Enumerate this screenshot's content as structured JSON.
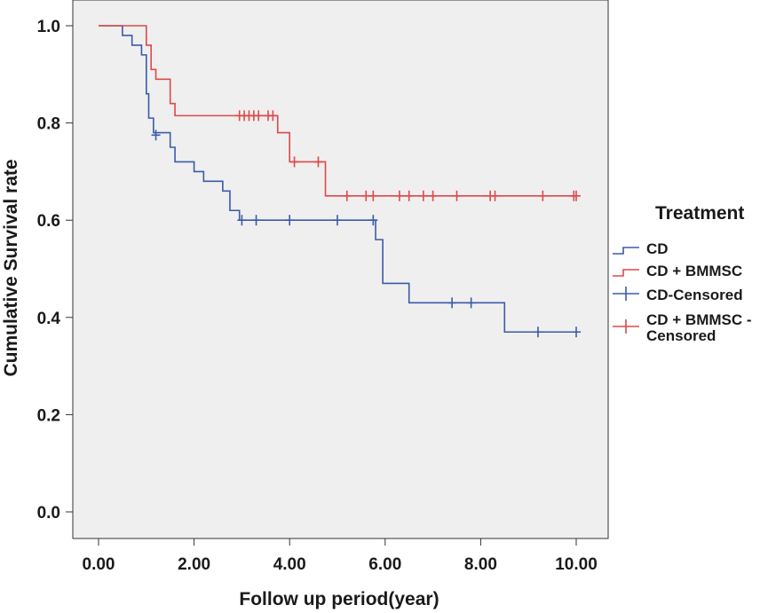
{
  "chart_data": {
    "type": "line",
    "subtype": "kaplan-meier-step",
    "title": "",
    "xlabel": "Follow up period(year)",
    "ylabel": "Cumulative Survival rate",
    "xlim": [
      0,
      10
    ],
    "ylim": [
      0,
      1
    ],
    "x_ticks": [
      0,
      2,
      4,
      6,
      8,
      10
    ],
    "x_tick_labels": [
      "0.00",
      "2.00",
      "4.00",
      "6.00",
      "8.00",
      "10.00"
    ],
    "y_ticks": [
      0,
      0.2,
      0.4,
      0.6,
      0.8,
      1.0
    ],
    "y_tick_labels": [
      "0.0",
      "0.2",
      "0.4",
      "0.6",
      "0.8",
      "1.0"
    ],
    "grid": false,
    "legend": {
      "title": "Treatment",
      "position": "right",
      "entries": [
        {
          "label": "CD",
          "marker": "step",
          "color": "#3a5ba8"
        },
        {
          "label": "CD + BMMSC",
          "marker": "step",
          "color": "#e04848"
        },
        {
          "label": "CD-Censored",
          "marker": "plus",
          "color": "#3a5ba8"
        },
        {
          "label": "CD + BMMSC - Censored",
          "marker": "plus",
          "color": "#e04848"
        }
      ]
    },
    "series": [
      {
        "name": "CD",
        "color": "#3a5ba8",
        "steps": [
          [
            0,
            1.0
          ],
          [
            0.5,
            0.98
          ],
          [
            0.7,
            0.96
          ],
          [
            0.9,
            0.94
          ],
          [
            1.0,
            0.86
          ],
          [
            1.05,
            0.81
          ],
          [
            1.15,
            0.78
          ],
          [
            1.5,
            0.75
          ],
          [
            1.6,
            0.72
          ],
          [
            2.0,
            0.7
          ],
          [
            2.2,
            0.68
          ],
          [
            2.6,
            0.66
          ],
          [
            2.75,
            0.62
          ],
          [
            2.95,
            0.6
          ],
          [
            5.8,
            0.56
          ],
          [
            5.95,
            0.47
          ],
          [
            6.5,
            0.43
          ],
          [
            8.5,
            0.37
          ],
          [
            10.0,
            0.37
          ]
        ],
        "censored": [
          [
            1.2,
            0.775
          ],
          [
            3.0,
            0.6
          ],
          [
            3.3,
            0.6
          ],
          [
            4.0,
            0.6
          ],
          [
            5.0,
            0.6
          ],
          [
            5.75,
            0.6
          ],
          [
            7.4,
            0.43
          ],
          [
            7.8,
            0.43
          ],
          [
            9.2,
            0.37
          ],
          [
            10.0,
            0.37
          ]
        ]
      },
      {
        "name": "CD + BMMSC",
        "color": "#e04848",
        "steps": [
          [
            0,
            1.0
          ],
          [
            1.0,
            0.96
          ],
          [
            1.1,
            0.91
          ],
          [
            1.2,
            0.89
          ],
          [
            1.5,
            0.84
          ],
          [
            1.6,
            0.815
          ],
          [
            3.75,
            0.78
          ],
          [
            4.0,
            0.72
          ],
          [
            4.75,
            0.65
          ],
          [
            10.0,
            0.65
          ]
        ],
        "censored": [
          [
            2.95,
            0.815
          ],
          [
            3.05,
            0.815
          ],
          [
            3.15,
            0.815
          ],
          [
            3.25,
            0.815
          ],
          [
            3.35,
            0.815
          ],
          [
            3.55,
            0.815
          ],
          [
            3.65,
            0.815
          ],
          [
            4.1,
            0.72
          ],
          [
            4.6,
            0.72
          ],
          [
            5.2,
            0.65
          ],
          [
            5.6,
            0.65
          ],
          [
            5.75,
            0.65
          ],
          [
            6.3,
            0.65
          ],
          [
            6.5,
            0.65
          ],
          [
            6.8,
            0.65
          ],
          [
            7.0,
            0.65
          ],
          [
            7.5,
            0.65
          ],
          [
            8.2,
            0.65
          ],
          [
            8.3,
            0.65
          ],
          [
            9.3,
            0.65
          ],
          [
            9.95,
            0.65
          ],
          [
            10.0,
            0.65
          ]
        ]
      }
    ]
  }
}
